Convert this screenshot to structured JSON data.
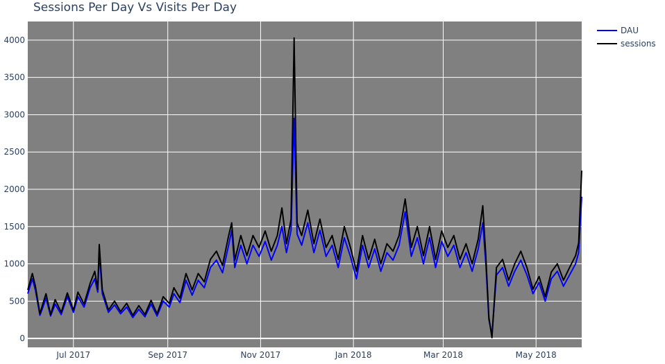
{
  "chart_data": {
    "type": "line",
    "title": "Sessions Per Day Vs Visits Per Day",
    "xlabel": "",
    "ylabel": "",
    "x_range": [
      "2017-06-01",
      "2018-05-31"
    ],
    "ylim": [
      -120,
      4250
    ],
    "x_ticks": [
      {
        "date": "2017-07-01",
        "label": "Jul 2017"
      },
      {
        "date": "2017-09-01",
        "label": "Sep 2017"
      },
      {
        "date": "2017-11-01",
        "label": "Nov 2017"
      },
      {
        "date": "2018-01-01",
        "label": "Jan 2018"
      },
      {
        "date": "2018-03-01",
        "label": "Mar 2018"
      },
      {
        "date": "2018-05-01",
        "label": "May 2018"
      }
    ],
    "y_ticks": [
      0,
      500,
      1000,
      1500,
      2000,
      2500,
      3000,
      3500,
      4000
    ],
    "grid": true,
    "plot_background": "#808080",
    "legend_position": "top-right",
    "series": [
      {
        "name": "DAU",
        "color": "#0000ff",
        "points": [
          [
            "2017-06-01",
            600
          ],
          [
            "2017-06-04",
            800
          ],
          [
            "2017-06-06",
            650
          ],
          [
            "2017-06-09",
            310
          ],
          [
            "2017-06-11",
            420
          ],
          [
            "2017-06-13",
            540
          ],
          [
            "2017-06-16",
            300
          ],
          [
            "2017-06-19",
            460
          ],
          [
            "2017-06-23",
            320
          ],
          [
            "2017-06-27",
            560
          ],
          [
            "2017-07-01",
            350
          ],
          [
            "2017-07-04",
            560
          ],
          [
            "2017-07-08",
            420
          ],
          [
            "2017-07-12",
            680
          ],
          [
            "2017-07-15",
            800
          ],
          [
            "2017-07-17",
            620
          ],
          [
            "2017-07-18",
            1150
          ],
          [
            "2017-07-20",
            600
          ],
          [
            "2017-07-24",
            350
          ],
          [
            "2017-07-28",
            450
          ],
          [
            "2017-08-01",
            330
          ],
          [
            "2017-08-05",
            420
          ],
          [
            "2017-08-09",
            280
          ],
          [
            "2017-08-13",
            390
          ],
          [
            "2017-08-17",
            290
          ],
          [
            "2017-08-21",
            460
          ],
          [
            "2017-08-25",
            300
          ],
          [
            "2017-08-29",
            500
          ],
          [
            "2017-09-02",
            420
          ],
          [
            "2017-09-05",
            600
          ],
          [
            "2017-09-09",
            480
          ],
          [
            "2017-09-13",
            780
          ],
          [
            "2017-09-17",
            580
          ],
          [
            "2017-09-21",
            780
          ],
          [
            "2017-09-25",
            680
          ],
          [
            "2017-09-29",
            950
          ],
          [
            "2017-10-03",
            1050
          ],
          [
            "2017-10-07",
            880
          ],
          [
            "2017-10-11",
            1250
          ],
          [
            "2017-10-13",
            1450
          ],
          [
            "2017-10-15",
            950
          ],
          [
            "2017-10-19",
            1250
          ],
          [
            "2017-10-23",
            1000
          ],
          [
            "2017-10-27",
            1250
          ],
          [
            "2017-10-31",
            1100
          ],
          [
            "2017-11-04",
            1300
          ],
          [
            "2017-11-08",
            1050
          ],
          [
            "2017-11-12",
            1250
          ],
          [
            "2017-11-15",
            1500
          ],
          [
            "2017-11-18",
            1150
          ],
          [
            "2017-11-21",
            1450
          ],
          [
            "2017-11-23",
            2950
          ],
          [
            "2017-11-25",
            1400
          ],
          [
            "2017-11-28",
            1250
          ],
          [
            "2017-12-02",
            1550
          ],
          [
            "2017-12-06",
            1150
          ],
          [
            "2017-12-10",
            1450
          ],
          [
            "2017-12-14",
            1100
          ],
          [
            "2017-12-18",
            1250
          ],
          [
            "2017-12-22",
            950
          ],
          [
            "2017-12-26",
            1350
          ],
          [
            "2017-12-30",
            1100
          ],
          [
            "2018-01-03",
            800
          ],
          [
            "2018-01-07",
            1250
          ],
          [
            "2018-01-11",
            950
          ],
          [
            "2018-01-15",
            1200
          ],
          [
            "2018-01-19",
            900
          ],
          [
            "2018-01-23",
            1150
          ],
          [
            "2018-01-27",
            1050
          ],
          [
            "2018-01-31",
            1250
          ],
          [
            "2018-02-04",
            1700
          ],
          [
            "2018-02-08",
            1100
          ],
          [
            "2018-02-12",
            1350
          ],
          [
            "2018-02-16",
            1000
          ],
          [
            "2018-02-20",
            1350
          ],
          [
            "2018-02-24",
            950
          ],
          [
            "2018-02-28",
            1300
          ],
          [
            "2018-03-04",
            1100
          ],
          [
            "2018-03-08",
            1250
          ],
          [
            "2018-03-12",
            950
          ],
          [
            "2018-03-16",
            1150
          ],
          [
            "2018-03-20",
            900
          ],
          [
            "2018-03-24",
            1200
          ],
          [
            "2018-03-27",
            1550
          ],
          [
            "2018-03-29",
            1000
          ],
          [
            "2018-03-31",
            250
          ],
          [
            "2018-04-02",
            50
          ],
          [
            "2018-04-05",
            850
          ],
          [
            "2018-04-09",
            950
          ],
          [
            "2018-04-13",
            700
          ],
          [
            "2018-04-17",
            900
          ],
          [
            "2018-04-21",
            1050
          ],
          [
            "2018-04-25",
            850
          ],
          [
            "2018-04-29",
            600
          ],
          [
            "2018-05-03",
            750
          ],
          [
            "2018-05-07",
            500
          ],
          [
            "2018-05-11",
            800
          ],
          [
            "2018-05-15",
            900
          ],
          [
            "2018-05-19",
            700
          ],
          [
            "2018-05-23",
            850
          ],
          [
            "2018-05-27",
            1000
          ],
          [
            "2018-05-29",
            1150
          ],
          [
            "2018-05-31",
            1900
          ]
        ]
      },
      {
        "name": "sessions",
        "color": "#000000",
        "points": [
          [
            "2017-06-01",
            650
          ],
          [
            "2017-06-04",
            870
          ],
          [
            "2017-06-06",
            700
          ],
          [
            "2017-06-09",
            330
          ],
          [
            "2017-06-11",
            470
          ],
          [
            "2017-06-13",
            600
          ],
          [
            "2017-06-16",
            320
          ],
          [
            "2017-06-19",
            520
          ],
          [
            "2017-06-23",
            350
          ],
          [
            "2017-06-27",
            610
          ],
          [
            "2017-07-01",
            380
          ],
          [
            "2017-07-04",
            620
          ],
          [
            "2017-07-08",
            460
          ],
          [
            "2017-07-12",
            740
          ],
          [
            "2017-07-15",
            900
          ],
          [
            "2017-07-17",
            660
          ],
          [
            "2017-07-18",
            1260
          ],
          [
            "2017-07-20",
            650
          ],
          [
            "2017-07-24",
            380
          ],
          [
            "2017-07-28",
            500
          ],
          [
            "2017-08-01",
            360
          ],
          [
            "2017-08-05",
            470
          ],
          [
            "2017-08-09",
            310
          ],
          [
            "2017-08-13",
            440
          ],
          [
            "2017-08-17",
            320
          ],
          [
            "2017-08-21",
            510
          ],
          [
            "2017-08-25",
            330
          ],
          [
            "2017-08-29",
            560
          ],
          [
            "2017-09-02",
            470
          ],
          [
            "2017-09-05",
            680
          ],
          [
            "2017-09-09",
            540
          ],
          [
            "2017-09-13",
            870
          ],
          [
            "2017-09-17",
            650
          ],
          [
            "2017-09-21",
            870
          ],
          [
            "2017-09-25",
            760
          ],
          [
            "2017-09-29",
            1060
          ],
          [
            "2017-10-03",
            1170
          ],
          [
            "2017-10-07",
            980
          ],
          [
            "2017-10-11",
            1380
          ],
          [
            "2017-10-13",
            1550
          ],
          [
            "2017-10-15",
            1050
          ],
          [
            "2017-10-19",
            1380
          ],
          [
            "2017-10-23",
            1110
          ],
          [
            "2017-10-27",
            1380
          ],
          [
            "2017-10-31",
            1220
          ],
          [
            "2017-11-04",
            1440
          ],
          [
            "2017-11-08",
            1170
          ],
          [
            "2017-11-12",
            1380
          ],
          [
            "2017-11-15",
            1750
          ],
          [
            "2017-11-18",
            1270
          ],
          [
            "2017-11-21",
            1600
          ],
          [
            "2017-11-23",
            4030
          ],
          [
            "2017-11-25",
            1550
          ],
          [
            "2017-11-28",
            1380
          ],
          [
            "2017-12-02",
            1720
          ],
          [
            "2017-12-06",
            1270
          ],
          [
            "2017-12-10",
            1600
          ],
          [
            "2017-12-14",
            1220
          ],
          [
            "2017-12-18",
            1380
          ],
          [
            "2017-12-22",
            1060
          ],
          [
            "2017-12-26",
            1500
          ],
          [
            "2017-12-30",
            1220
          ],
          [
            "2018-01-03",
            900
          ],
          [
            "2018-01-07",
            1380
          ],
          [
            "2018-01-11",
            1060
          ],
          [
            "2018-01-15",
            1330
          ],
          [
            "2018-01-19",
            1000
          ],
          [
            "2018-01-23",
            1270
          ],
          [
            "2018-01-27",
            1170
          ],
          [
            "2018-01-31",
            1380
          ],
          [
            "2018-02-04",
            1870
          ],
          [
            "2018-02-08",
            1220
          ],
          [
            "2018-02-12",
            1500
          ],
          [
            "2018-02-16",
            1110
          ],
          [
            "2018-02-20",
            1500
          ],
          [
            "2018-02-24",
            1060
          ],
          [
            "2018-02-28",
            1440
          ],
          [
            "2018-03-04",
            1220
          ],
          [
            "2018-03-08",
            1380
          ],
          [
            "2018-03-12",
            1060
          ],
          [
            "2018-03-16",
            1270
          ],
          [
            "2018-03-20",
            1000
          ],
          [
            "2018-03-24",
            1330
          ],
          [
            "2018-03-27",
            1780
          ],
          [
            "2018-03-29",
            1100
          ],
          [
            "2018-03-31",
            280
          ],
          [
            "2018-04-02",
            10
          ],
          [
            "2018-04-05",
            950
          ],
          [
            "2018-04-09",
            1060
          ],
          [
            "2018-04-13",
            780
          ],
          [
            "2018-04-17",
            1000
          ],
          [
            "2018-04-21",
            1170
          ],
          [
            "2018-04-25",
            950
          ],
          [
            "2018-04-29",
            660
          ],
          [
            "2018-05-03",
            830
          ],
          [
            "2018-05-07",
            560
          ],
          [
            "2018-05-11",
            890
          ],
          [
            "2018-05-15",
            1000
          ],
          [
            "2018-05-19",
            780
          ],
          [
            "2018-05-23",
            950
          ],
          [
            "2018-05-27",
            1110
          ],
          [
            "2018-05-29",
            1280
          ],
          [
            "2018-05-31",
            2250
          ]
        ]
      }
    ]
  }
}
